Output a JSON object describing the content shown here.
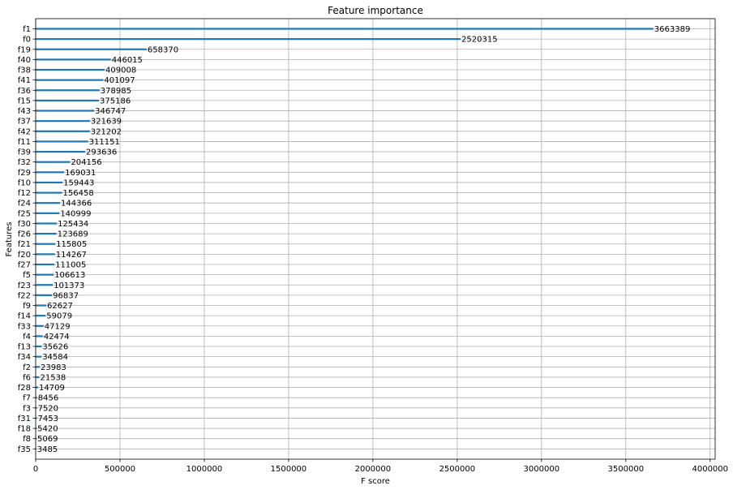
{
  "chart_data": {
    "type": "bar",
    "orientation": "horizontal",
    "title": "Feature importance",
    "xlabel": "F score",
    "ylabel": "Features",
    "xlim": [
      0,
      4030000
    ],
    "xticks": [
      0,
      500000,
      1000000,
      1500000,
      2000000,
      2500000,
      3000000,
      3500000,
      4000000
    ],
    "grid": true,
    "bar_color": "#1f77b4",
    "categories": [
      "f1",
      "f0",
      "f19",
      "f40",
      "f38",
      "f41",
      "f36",
      "f15",
      "f43",
      "f37",
      "f42",
      "f11",
      "f39",
      "f32",
      "f29",
      "f10",
      "f12",
      "f24",
      "f25",
      "f30",
      "f26",
      "f21",
      "f20",
      "f27",
      "f5",
      "f23",
      "f22",
      "f9",
      "f14",
      "f33",
      "f4",
      "f13",
      "f34",
      "f2",
      "f6",
      "f28",
      "f7",
      "f3",
      "f31",
      "f18",
      "f8",
      "f35"
    ],
    "values": [
      3663389,
      2520315,
      658370,
      446015,
      409008,
      401097,
      378985,
      375186,
      346747,
      321639,
      321202,
      311151,
      293636,
      204156,
      169031,
      159443,
      156458,
      144366,
      140999,
      125434,
      123689,
      115805,
      114267,
      111005,
      106613,
      101373,
      96837,
      62627,
      59079,
      47129,
      42474,
      35626,
      34584,
      23983,
      21538,
      14709,
      8456,
      7520,
      7453,
      5420,
      5069,
      3485
    ]
  }
}
